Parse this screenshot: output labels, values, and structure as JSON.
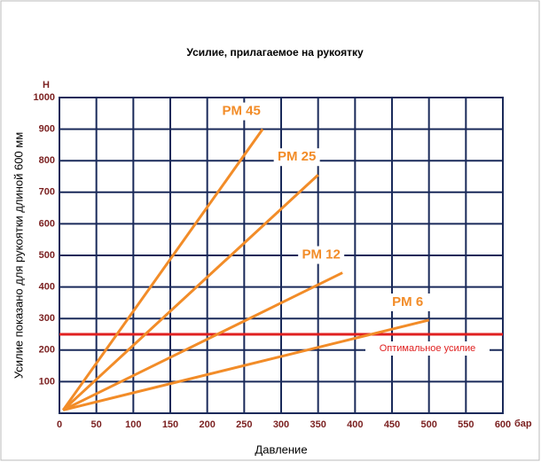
{
  "chart_data": {
    "type": "line",
    "title": "Усилие, прилагаемое на рукоятку",
    "x_label": "Давление",
    "y_label": "Усилие показано для рукоятки длиной 600 мм",
    "y_unit": "Н",
    "x_unit": "бар",
    "xlim": [
      0,
      600
    ],
    "ylim": [
      0,
      1000
    ],
    "xticks": [
      0,
      50,
      100,
      150,
      200,
      250,
      300,
      350,
      400,
      450,
      500,
      550,
      600
    ],
    "yticks": [
      100,
      200,
      300,
      400,
      500,
      600,
      700,
      800,
      900,
      1000
    ],
    "grid": true,
    "grid_color": "#1a2a5a",
    "series": [
      {
        "name": "PM 45",
        "color": "#f28c28",
        "x": [
          5,
          275
        ],
        "values": [
          10,
          900
        ]
      },
      {
        "name": "PM 25",
        "color": "#f28c28",
        "x": [
          5,
          350
        ],
        "values": [
          10,
          755
        ]
      },
      {
        "name": "PM 12",
        "color": "#f28c28",
        "x": [
          5,
          383
        ],
        "values": [
          10,
          445
        ]
      },
      {
        "name": "PM 6",
        "color": "#f28c28",
        "x": [
          5,
          500
        ],
        "values": [
          10,
          295
        ]
      }
    ],
    "annotations": [
      {
        "text": "Оптимальное усилие",
        "y": 250,
        "color": "#e02020"
      }
    ]
  }
}
